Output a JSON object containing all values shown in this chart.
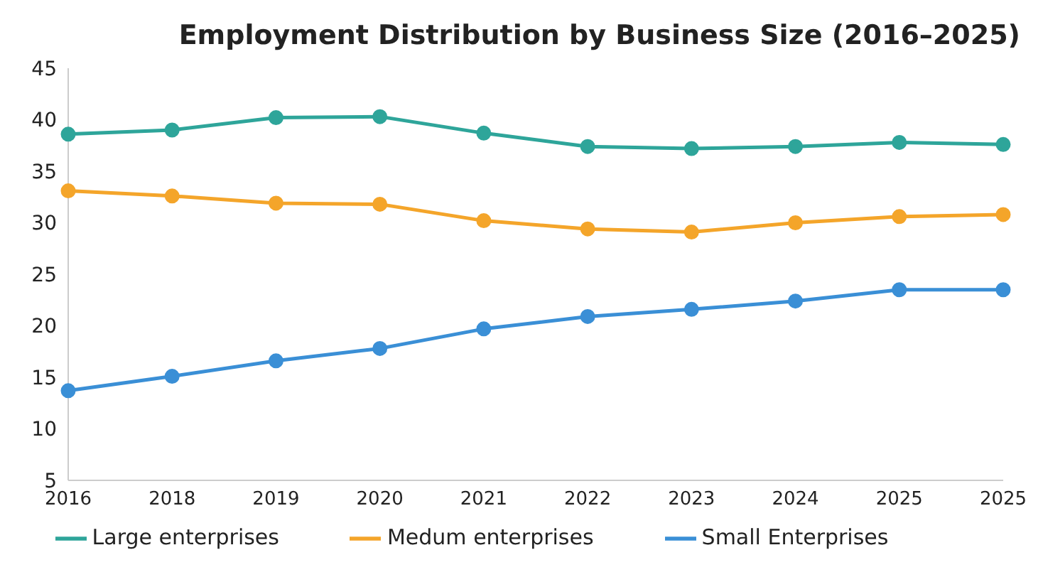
{
  "chart_data": {
    "type": "line",
    "title": "Employment Distribution by Business Size (2016–2025)",
    "categories": [
      "2016",
      "2018",
      "2019",
      "2020",
      "2021",
      "2022",
      "2023",
      "2024",
      "2025",
      "2025"
    ],
    "series": [
      {
        "name": "Large enterprises",
        "color": "#2ea59a",
        "values": [
          38.6,
          39.0,
          40.2,
          40.3,
          38.7,
          37.4,
          37.2,
          37.4,
          37.8,
          37.6
        ]
      },
      {
        "name": "Medum enterprises",
        "color": "#f4a52a",
        "values": [
          33.1,
          32.6,
          31.9,
          31.8,
          30.2,
          29.4,
          29.1,
          30.0,
          30.6,
          30.8
        ]
      },
      {
        "name": "Small Enterprises",
        "color": "#3a8fd6",
        "values": [
          13.7,
          15.1,
          16.6,
          17.8,
          19.7,
          20.9,
          21.6,
          22.4,
          23.5,
          23.5
        ]
      }
    ],
    "ylim": [
      5,
      45
    ],
    "yticks": [
      5,
      10,
      15,
      20,
      25,
      30,
      35,
      40,
      45
    ],
    "grid": false,
    "legend": "bottom",
    "marker": "circle",
    "line_style": "solid"
  }
}
